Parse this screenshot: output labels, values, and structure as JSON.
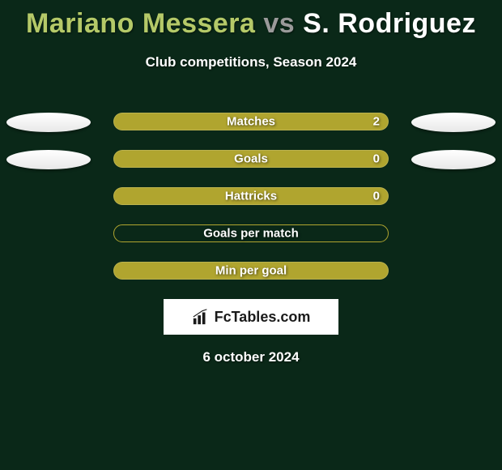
{
  "title": {
    "player1": "Mariano Messera",
    "vs": "vs",
    "player2": "S. Rodriguez",
    "player1_color": "#b5c968",
    "vs_color": "#9a9a9a",
    "player2_color": "#ffffff",
    "fontsize": 34
  },
  "subtitle": "Club competitions, Season 2024",
  "background_color": "#0a2818",
  "stats": {
    "bar_fill_color": "#b0a52f",
    "bar_border_color": "#b0a52f",
    "ellipse_color": "#ffffff",
    "label_color": "#ffffff",
    "rows": [
      {
        "label": "Matches",
        "value": "2",
        "filled": true,
        "show_value": true,
        "left_ellipse": true,
        "right_ellipse": true
      },
      {
        "label": "Goals",
        "value": "0",
        "filled": true,
        "show_value": true,
        "left_ellipse": true,
        "right_ellipse": true
      },
      {
        "label": "Hattricks",
        "value": "0",
        "filled": true,
        "show_value": true,
        "left_ellipse": false,
        "right_ellipse": false
      },
      {
        "label": "Goals per match",
        "value": "",
        "filled": false,
        "show_value": false,
        "left_ellipse": false,
        "right_ellipse": false
      },
      {
        "label": "Min per goal",
        "value": "",
        "filled": true,
        "show_value": false,
        "left_ellipse": false,
        "right_ellipse": false
      }
    ]
  },
  "logo": {
    "text": "FcTables.com",
    "icon_name": "bar-chart-icon",
    "bg_color": "#ffffff",
    "text_color": "#1a1a1a"
  },
  "date": "6 october 2024"
}
